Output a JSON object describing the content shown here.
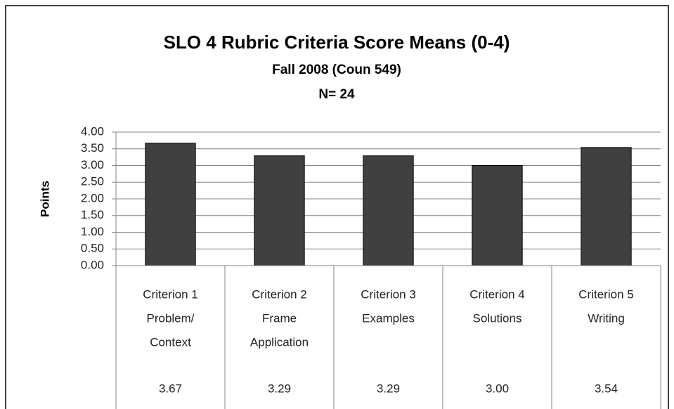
{
  "chart_data": {
    "type": "bar",
    "title": "SLO 4 Rubric Criteria Score Means (0-4)",
    "subtitle": "Fall 2008 (Coun 549)",
    "note": "N= 24",
    "y_label": "Points",
    "categories": [
      [
        "Criterion 1",
        "Problem/",
        "Context"
      ],
      [
        "Criterion 2",
        "Frame",
        "Application"
      ],
      [
        "Criterion 3",
        "Examples"
      ],
      [
        "Criterion 4",
        "Solutions"
      ],
      [
        "Criterion 5",
        "Writing"
      ]
    ],
    "values": [
      3.67,
      3.29,
      3.29,
      3.0,
      3.54
    ],
    "value_labels": [
      "3.67",
      "3.29",
      "3.29",
      "3.00",
      "3.54"
    ],
    "color": "#404040",
    "ylim": [
      0,
      4
    ],
    "yticks": [
      {
        "value": 0,
        "label": "0.00"
      },
      {
        "value": 0.5,
        "label": "0.50"
      },
      {
        "value": 1,
        "label": "1.00"
      },
      {
        "value": 1.5,
        "label": "1.50"
      },
      {
        "value": 2,
        "label": "2.00"
      },
      {
        "value": 2.5,
        "label": "2.50"
      },
      {
        "value": 3,
        "label": "3.00"
      },
      {
        "value": 3.5,
        "label": "3.50"
      },
      {
        "value": 4,
        "label": "4.00"
      }
    ],
    "grid": true
  }
}
